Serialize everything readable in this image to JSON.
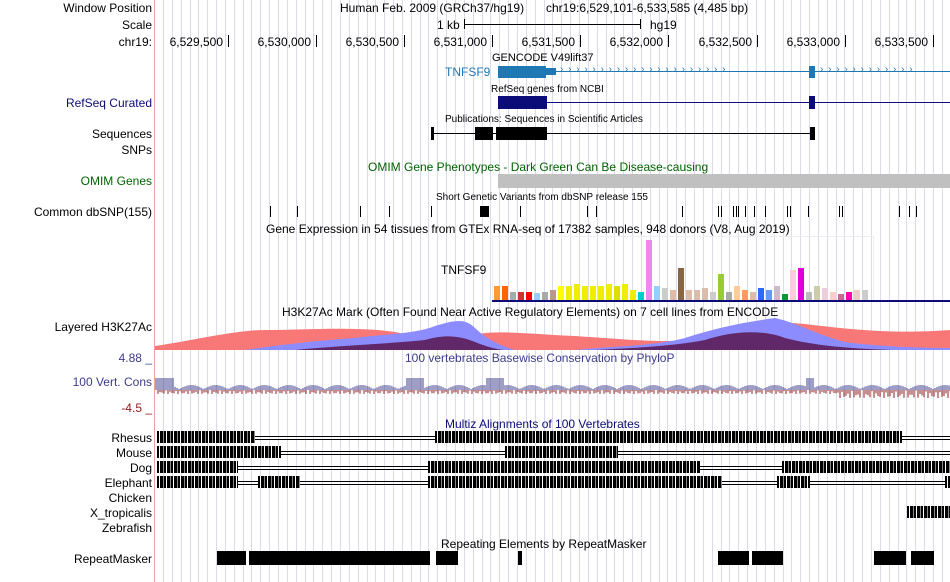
{
  "header": {
    "window_position_label": "Window Position",
    "scale_label": "Scale",
    "chrom_label": "chr19:",
    "assembly": "Human Feb. 2009 (GRCh37/hg19)",
    "position": "chr19:6,529,101-6,533,585 (4,485 bp)",
    "scale_value": "1 kb",
    "scale_assembly": "hg19",
    "ruler_ticks": [
      "6,529,500",
      "6,530,000",
      "6,530,500",
      "6,531,000",
      "6,531,500",
      "6,532,000",
      "6,532,500",
      "6,533,000",
      "6,533,500"
    ]
  },
  "tracks": {
    "gencode": {
      "title": "GENCODE V49lift37",
      "gene": "TNFSF9",
      "color": "#1f77b4"
    },
    "refseq": {
      "label": "RefSeq Curated",
      "title": "RefSeq genes from NCBI",
      "color": "#0c0c78"
    },
    "publications": {
      "title": "Publications: Sequences in Scientific Articles",
      "label_line1": "Sequences",
      "label_line2": "SNPs"
    },
    "omim": {
      "label": "OMIM Genes",
      "title": "OMIM Gene Phenotypes - Dark Green Can Be Disease-causing",
      "color": "#006400"
    },
    "dbsnp": {
      "label": "Common dbSNP(155)",
      "title": "Short Genetic Variants from dbSNP release 155"
    },
    "gtex": {
      "title": "Gene Expression in 54 tissues from GTEx RNA-seq of 17382 samples, 948 donors (V8, Aug 2019)",
      "gene": "TNFSF9"
    },
    "h3k27ac": {
      "label": "Layered H3K27Ac",
      "title": "H3K27Ac Mark (Often Found Near Active Regulatory Elements) on 7 cell lines from ENCODE"
    },
    "phylop": {
      "label": "100 Vert. Cons",
      "title": "100 vertebrates Basewise Conservation by PhyloP",
      "max": "4.88 _",
      "min": "-4.5 _",
      "color": "#3c3c8c"
    },
    "multiz": {
      "title": "Multiz Alignments of 100 Vertebrates",
      "species": [
        {
          "name": "Rhesus",
          "color": "#0c0c78"
        },
        {
          "name": "Mouse",
          "color": "#006400"
        },
        {
          "name": "Dog",
          "color": "#0c0c78"
        },
        {
          "name": "Elephant",
          "color": "#006400"
        },
        {
          "name": "Chicken",
          "color": "#006400"
        },
        {
          "name": "X_tropicalis",
          "color": "#0c0c78"
        },
        {
          "name": "Zebrafish",
          "color": "#006400"
        }
      ]
    },
    "repeatmasker": {
      "label": "RepeatMasker",
      "title": "Repeating Elements by RepeatMasker"
    }
  }
}
